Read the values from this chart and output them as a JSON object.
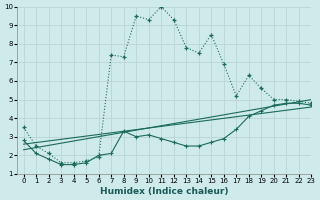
{
  "xlabel": "Humidex (Indice chaleur)",
  "background_color": "#ceeaea",
  "grid_color": "#b8d4d4",
  "line_color": "#1a6b5a",
  "xlim": [
    -0.5,
    23
  ],
  "ylim": [
    1,
    10
  ],
  "xticks": [
    0,
    1,
    2,
    3,
    4,
    5,
    6,
    7,
    8,
    9,
    10,
    11,
    12,
    13,
    14,
    15,
    16,
    17,
    18,
    19,
    20,
    21,
    22,
    23
  ],
  "yticks": [
    1,
    2,
    3,
    4,
    5,
    6,
    7,
    8,
    9,
    10
  ],
  "line1_x": [
    0,
    1,
    2,
    3,
    4,
    5,
    6,
    7,
    8,
    9,
    10,
    11,
    12,
    13,
    14,
    15,
    16,
    17,
    18,
    19,
    20,
    21,
    22,
    23
  ],
  "line1_y": [
    3.5,
    2.5,
    2.1,
    1.6,
    1.6,
    1.7,
    1.9,
    7.4,
    7.3,
    9.5,
    9.3,
    10.0,
    9.3,
    7.8,
    7.5,
    8.5,
    6.9,
    5.2,
    6.3,
    5.6,
    5.0,
    5.0,
    4.9,
    4.8
  ],
  "line2_x": [
    0,
    1,
    2,
    3,
    4,
    5,
    6,
    7,
    8,
    9,
    10,
    11,
    12,
    13,
    14,
    15,
    16,
    17,
    18,
    19,
    20,
    21,
    22,
    23
  ],
  "line2_y": [
    2.8,
    2.1,
    1.8,
    1.5,
    1.5,
    1.6,
    2.0,
    2.1,
    3.3,
    3.0,
    3.1,
    2.9,
    2.7,
    2.5,
    2.5,
    2.7,
    2.9,
    3.4,
    4.1,
    4.4,
    4.7,
    4.8,
    4.8,
    4.7
  ],
  "line3_x": [
    0,
    23
  ],
  "line3_y": [
    2.6,
    4.6
  ],
  "line4_x": [
    0,
    23
  ],
  "line4_y": [
    2.3,
    5.0
  ]
}
